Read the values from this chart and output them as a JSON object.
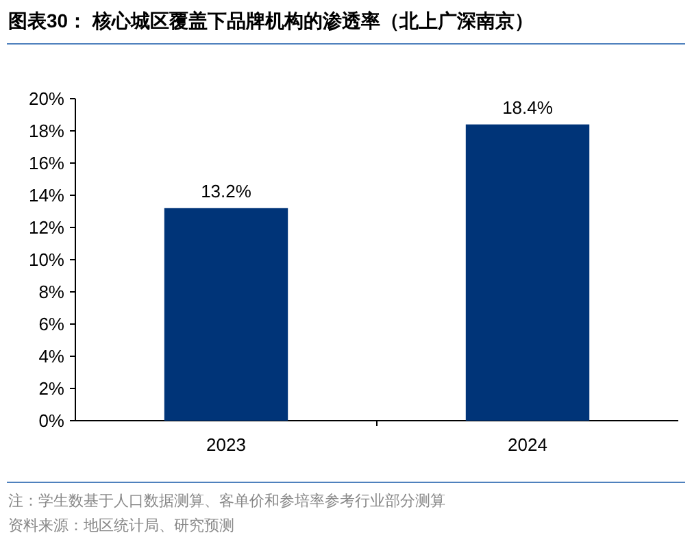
{
  "chart_data": {
    "type": "bar",
    "title": "图表30： 核心城区覆盖下品牌机构的渗透率（北上广深南京）",
    "categories": [
      "2023",
      "2024"
    ],
    "values": [
      13.2,
      18.4
    ],
    "value_labels": [
      "13.2%",
      "18.4%"
    ],
    "color": "#003478",
    "ylim": [
      0,
      20
    ],
    "yticks": [
      {
        "value": 0,
        "label": "0%"
      },
      {
        "value": 2,
        "label": "2%"
      },
      {
        "value": 4,
        "label": "4%"
      },
      {
        "value": 6,
        "label": "6%"
      },
      {
        "value": 8,
        "label": "8%"
      },
      {
        "value": 10,
        "label": "10%"
      },
      {
        "value": 12,
        "label": "12%"
      },
      {
        "value": 14,
        "label": "14%"
      },
      {
        "value": 16,
        "label": "16%"
      },
      {
        "value": 18,
        "label": "18%"
      },
      {
        "value": 20,
        "label": "20%"
      }
    ],
    "grid": false,
    "annotations": [
      "注：学生数基于人口数据测算、客单价和参培率参考行业部分测算",
      "资料来源：地区统计局、研究预测"
    ]
  }
}
